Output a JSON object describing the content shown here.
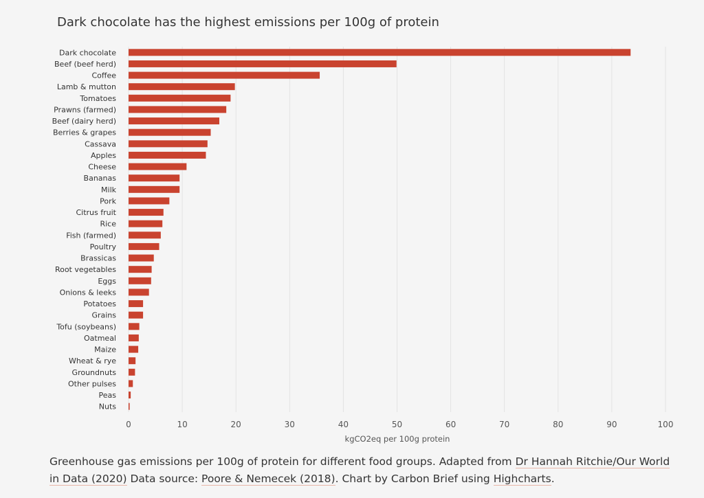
{
  "colors": {
    "bar": "#c9432f",
    "grid": "#e3e3e3",
    "background": "#f5f5f5",
    "link_underline": "#e8b6a8"
  },
  "caption": {
    "text_1": "Greenhouse gas emissions per 100g of protein for different food groups. Adapted from ",
    "link_1": "Dr Hannah Ritchie/Our World in Data (2020)",
    "text_2": " Data source: ",
    "link_2": "Poore & Nemecek (2018)",
    "text_3": ". Chart by Carbon Brief using ",
    "link_3": "Highcharts",
    "text_4": "."
  },
  "chart_data": {
    "type": "bar",
    "orientation": "horizontal",
    "title": "Dark chocolate has the highest emissions per 100g of protein",
    "xlabel": "kgCO2eq per 100g protein",
    "ylabel": "",
    "xlim": [
      0,
      100
    ],
    "xticks": [
      0,
      10,
      20,
      30,
      40,
      50,
      60,
      70,
      80,
      90,
      100
    ],
    "grid": true,
    "categories": [
      "Dark chocolate",
      "Beef (beef herd)",
      "Coffee",
      "Lamb & mutton",
      "Tomatoes",
      "Prawns (farmed)",
      "Beef (dairy herd)",
      "Berries & grapes",
      "Cassava",
      "Apples",
      "Cheese",
      "Bananas",
      "Milk",
      "Pork",
      "Citrus fruit",
      "Rice",
      "Fish (farmed)",
      "Poultry",
      "Brassicas",
      "Root vegetables",
      "Eggs",
      "Onions & leeks",
      "Potatoes",
      "Grains",
      "Tofu (soybeans)",
      "Oatmeal",
      "Maize",
      "Wheat & rye",
      "Groundnuts",
      "Other pulses",
      "Peas",
      "Nuts"
    ],
    "values": [
      93.5,
      49.9,
      35.6,
      19.8,
      19.0,
      18.2,
      16.9,
      15.3,
      14.7,
      14.4,
      10.8,
      9.5,
      9.5,
      7.6,
      6.5,
      6.3,
      6.0,
      5.7,
      4.7,
      4.3,
      4.2,
      3.8,
      2.7,
      2.7,
      2.0,
      1.9,
      1.8,
      1.3,
      1.2,
      0.8,
      0.4,
      0.2
    ]
  }
}
